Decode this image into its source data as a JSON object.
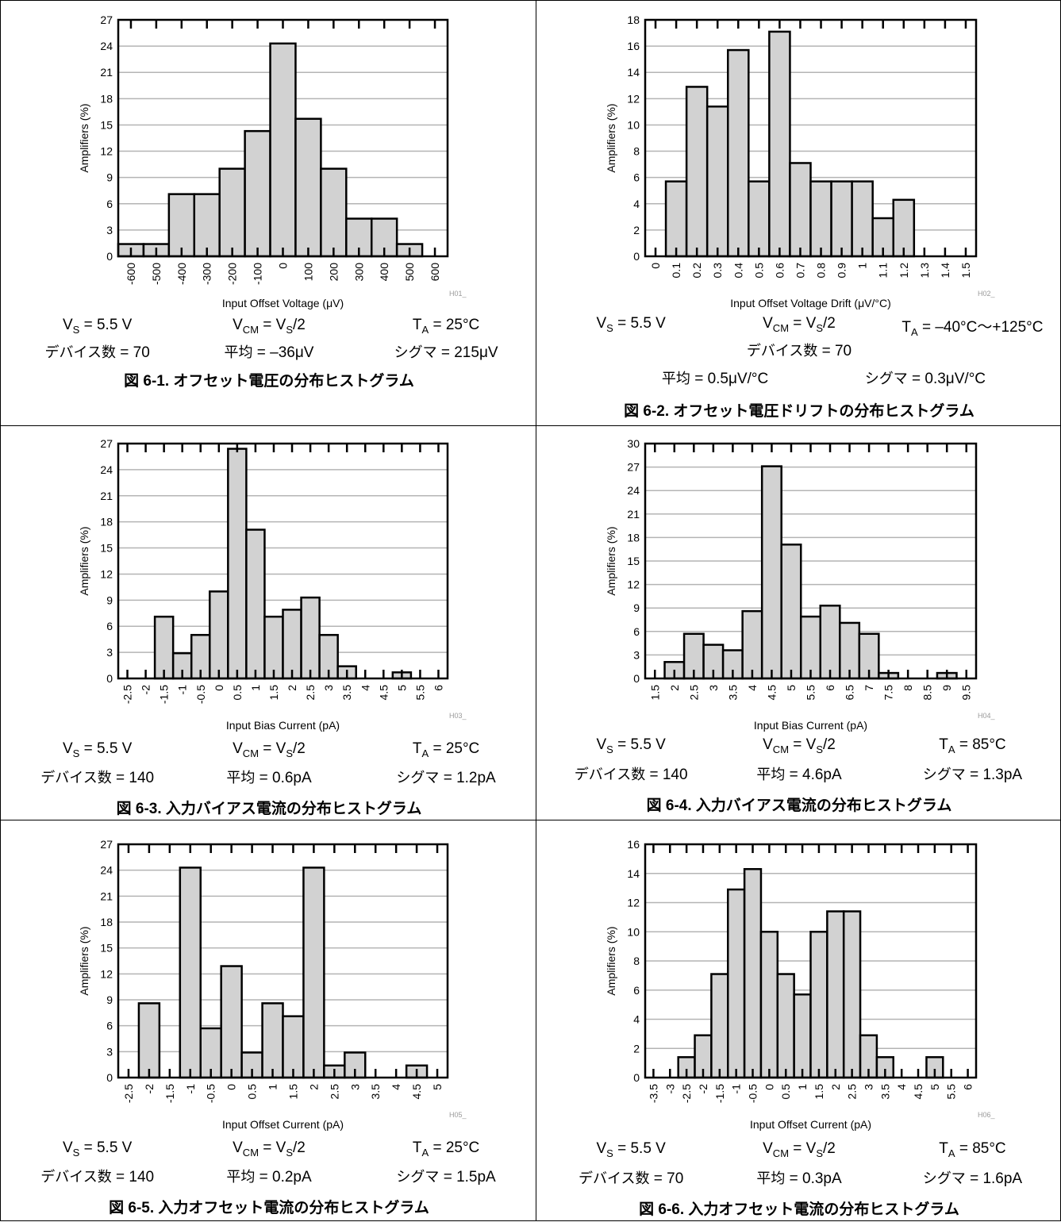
{
  "panels": [
    {
      "id": "p1",
      "conditions": [
        {
          "line": 1,
          "label": "Vs",
          "text": "= 5.5 V"
        },
        {
          "line": 1,
          "label": "Vcm",
          "text": "= Vs/2"
        },
        {
          "line": 1,
          "label": "TA",
          "text": "= 25°C"
        },
        {
          "line": 2,
          "text": "デバイス数 = 70"
        },
        {
          "line": 2,
          "text": "平均 = –36μV"
        },
        {
          "line": 2,
          "text": "シグマ = 215μV"
        }
      ],
      "caption": "図 6-1. オフセット電圧の分布ヒストグラム",
      "chart_data": {
        "type": "bar",
        "xlabel": "Input Offset Voltage (μV)",
        "ylabel": "Amplifiers (%)",
        "code": "H01_",
        "ylim": [
          0,
          27
        ],
        "yticks": [
          "0",
          "3",
          "6",
          "9",
          "12",
          "15",
          "18",
          "21",
          "24",
          "27"
        ],
        "xlim": [
          -650,
          650
        ],
        "xticks": [
          "-600",
          "-500",
          "-400",
          "-300",
          "-200",
          "-100",
          "0",
          "100",
          "200",
          "300",
          "400",
          "500",
          "600"
        ],
        "bin_width": 100,
        "bin_starts": [
          -650,
          -550,
          -450,
          -350,
          -250,
          -150,
          -50,
          50,
          150,
          250,
          350,
          450
        ],
        "values": [
          1.4,
          1.4,
          7.1,
          7.1,
          10.0,
          14.3,
          24.3,
          15.7,
          10.0,
          4.3,
          4.3,
          1.4
        ]
      }
    },
    {
      "id": "p2",
      "conditions": [
        {
          "line": 1,
          "label": "Vs",
          "text": "= 5.5 V"
        },
        {
          "line": 1,
          "label": "Vcm",
          "text": "= Vs/2"
        },
        {
          "line": 1,
          "label": "TA",
          "text": "= –40°C～+125°C"
        },
        {
          "line": 2,
          "text": "デバイス数 = 70"
        },
        {
          "line": 3,
          "text": "平均 = 0.5μV/°C"
        },
        {
          "line": 3,
          "text": "シグマ = 0.3μV/°C"
        }
      ],
      "caption": "図 6-2. オフセット電圧ドリフトの分布ヒストグラム",
      "chart_data": {
        "type": "bar",
        "xlabel": "Input Offset Voltage Drift (μV/°C)",
        "ylabel": "Amplifiers (%)",
        "code": "H02_",
        "ylim": [
          0,
          18
        ],
        "yticks": [
          "0",
          "2",
          "4",
          "6",
          "8",
          "10",
          "12",
          "14",
          "16",
          "18"
        ],
        "xlim": [
          -0.05,
          1.55
        ],
        "xticks": [
          "0",
          "0.1",
          "0.2",
          "0.3",
          "0.4",
          "0.5",
          "0.6",
          "0.7",
          "0.8",
          "0.9",
          "1",
          "1.1",
          "1.2",
          "1.3",
          "1.4",
          "1.5"
        ],
        "bin_width": 0.1,
        "bin_starts": [
          0.05,
          0.15,
          0.25,
          0.35,
          0.45,
          0.55,
          0.65,
          0.75,
          0.85,
          0.95,
          1.05,
          1.15
        ],
        "values": [
          5.7,
          12.9,
          11.4,
          15.7,
          5.7,
          17.1,
          7.1,
          5.7,
          5.7,
          5.7,
          2.9,
          4.3
        ]
      }
    },
    {
      "id": "p3",
      "conditions": [
        {
          "line": 1,
          "label": "Vs",
          "text": "= 5.5 V"
        },
        {
          "line": 1,
          "label": "Vcm",
          "text": "= Vs/2"
        },
        {
          "line": 1,
          "label": "TA",
          "text": "= 25°C"
        },
        {
          "line": 2,
          "text": "デバイス数 = 140"
        },
        {
          "line": 2,
          "text": "平均 = 0.6pA"
        },
        {
          "line": 2,
          "text": "シグマ = 1.2pA"
        }
      ],
      "caption": "図 6-3. 入力バイアス電流の分布ヒストグラム",
      "chart_data": {
        "type": "bar",
        "xlabel": "Input Bias Current (pA)",
        "ylabel": "Amplifiers (%)",
        "code": "H03_",
        "ylim": [
          0,
          27
        ],
        "yticks": [
          "0",
          "3",
          "6",
          "9",
          "12",
          "15",
          "18",
          "21",
          "24",
          "27"
        ],
        "xlim": [
          -2.75,
          6.25
        ],
        "xticks": [
          "-2.5",
          "-2",
          "-1.5",
          "-1",
          "-0.5",
          "0",
          "0.5",
          "1",
          "1.5",
          "2",
          "2.5",
          "3",
          "3.5",
          "4",
          "4.5",
          "5",
          "5.5",
          "6"
        ],
        "bin_width": 0.5,
        "bin_starts": [
          -1.75,
          -1.25,
          -0.75,
          -0.25,
          0.25,
          0.75,
          1.25,
          1.75,
          2.25,
          2.75,
          3.25,
          4.75
        ],
        "values": [
          7.1,
          2.9,
          5.0,
          10.0,
          26.4,
          17.1,
          7.1,
          7.9,
          9.3,
          5.0,
          1.4,
          0.7
        ]
      }
    },
    {
      "id": "p4",
      "conditions": [
        {
          "line": 1,
          "label": "Vs",
          "text": "= 5.5 V"
        },
        {
          "line": 1,
          "label": "Vcm",
          "text": "= Vs/2"
        },
        {
          "line": 1,
          "label": "TA",
          "text": "= 85°C"
        },
        {
          "line": 2,
          "text": "デバイス数 = 140"
        },
        {
          "line": 2,
          "text": "平均 = 4.6pA"
        },
        {
          "line": 2,
          "text": "シグマ = 1.3pA"
        }
      ],
      "caption": "図 6-4. 入力バイアス電流の分布ヒストグラム",
      "chart_data": {
        "type": "bar",
        "xlabel": "Input Bias Current (pA)",
        "ylabel": "Amplifiers (%)",
        "code": "H04_",
        "ylim": [
          0,
          30
        ],
        "yticks": [
          "0",
          "3",
          "6",
          "9",
          "12",
          "15",
          "18",
          "21",
          "24",
          "27",
          "30"
        ],
        "xlim": [
          1.25,
          9.75
        ],
        "xticks": [
          "1.5",
          "2",
          "2.5",
          "3",
          "3.5",
          "4",
          "4.5",
          "5",
          "5.5",
          "6",
          "6.5",
          "7",
          "7.5",
          "8",
          "8.5",
          "9",
          "9.5"
        ],
        "bin_width": 0.5,
        "bin_starts": [
          1.75,
          2.25,
          2.75,
          3.25,
          3.75,
          4.25,
          4.75,
          5.25,
          5.75,
          6.25,
          6.75,
          7.25,
          8.75
        ],
        "values": [
          2.1,
          5.7,
          4.3,
          3.6,
          8.6,
          27.1,
          17.1,
          7.9,
          9.3,
          7.1,
          5.7,
          0.7,
          0.7
        ]
      }
    },
    {
      "id": "p5",
      "conditions": [
        {
          "line": 1,
          "label": "Vs",
          "text": "= 5.5 V"
        },
        {
          "line": 1,
          "label": "Vcm",
          "text": "= Vs/2"
        },
        {
          "line": 1,
          "label": "TA",
          "text": "= 25°C"
        },
        {
          "line": 2,
          "text": "デバイス数 = 140"
        },
        {
          "line": 2,
          "text": "平均 = 0.2pA"
        },
        {
          "line": 2,
          "text": "シグマ = 1.5pA"
        }
      ],
      "caption": "図 6-5. 入力オフセット電流の分布ヒストグラム",
      "chart_data": {
        "type": "bar",
        "xlabel": "Input Offset Current (pA)",
        "ylabel": "Amplifiers (%)",
        "code": "H05_",
        "ylim": [
          0,
          27
        ],
        "yticks": [
          "0",
          "3",
          "6",
          "9",
          "12",
          "15",
          "18",
          "21",
          "24",
          "27"
        ],
        "xlim": [
          -2.75,
          5.25
        ],
        "xticks": [
          "-2.5",
          "-2",
          "-1.5",
          "-1",
          "-0.5",
          "0",
          "0.5",
          "1",
          "1.5",
          "2",
          "2.5",
          "3",
          "3.5",
          "4",
          "4.5",
          "5"
        ],
        "bin_width": 0.5,
        "bin_starts": [
          -2.25,
          -1.25,
          -0.75,
          -0.25,
          0.25,
          0.75,
          1.25,
          1.75,
          2.25,
          2.75,
          4.25
        ],
        "values": [
          8.6,
          24.3,
          5.7,
          12.9,
          2.9,
          8.6,
          7.1,
          24.3,
          1.4,
          2.9,
          1.4
        ]
      }
    },
    {
      "id": "p6",
      "conditions": [
        {
          "line": 1,
          "label": "Vs",
          "text": "= 5.5 V"
        },
        {
          "line": 1,
          "label": "Vcm",
          "text": "= Vs/2"
        },
        {
          "line": 1,
          "label": "TA",
          "text": "= 85°C"
        },
        {
          "line": 2,
          "text": "デバイス数 = 70"
        },
        {
          "line": 2,
          "text": "平均 = 0.3pA"
        },
        {
          "line": 2,
          "text": "シグマ = 1.6pA"
        }
      ],
      "caption": "図 6-6. 入力オフセット電流の分布ヒストグラム",
      "chart_data": {
        "type": "bar",
        "xlabel": "Input Offset Current (pA)",
        "ylabel": "Amplifiers (%)",
        "code": "H06_",
        "ylim": [
          0,
          16
        ],
        "yticks": [
          "0",
          "2",
          "4",
          "6",
          "8",
          "10",
          "12",
          "14",
          "16"
        ],
        "xlim": [
          -3.75,
          6.25
        ],
        "xticks": [
          "-3.5",
          "-3",
          "-2.5",
          "-2",
          "-1.5",
          "-1",
          "-0.5",
          "0",
          "0.5",
          "1",
          "1.5",
          "2",
          "2.5",
          "3",
          "3.5",
          "4",
          "4.5",
          "5",
          "5.5",
          "6"
        ],
        "bin_width": 0.5,
        "bin_starts": [
          -2.75,
          -2.25,
          -1.75,
          -1.25,
          -0.75,
          -0.25,
          0.25,
          0.75,
          1.25,
          1.75,
          2.25,
          2.75,
          3.25,
          4.75
        ],
        "values": [
          1.4,
          2.9,
          7.1,
          12.9,
          14.3,
          10.0,
          7.1,
          5.7,
          10.0,
          11.4,
          11.4,
          2.9,
          1.4,
          1.4
        ]
      }
    }
  ]
}
